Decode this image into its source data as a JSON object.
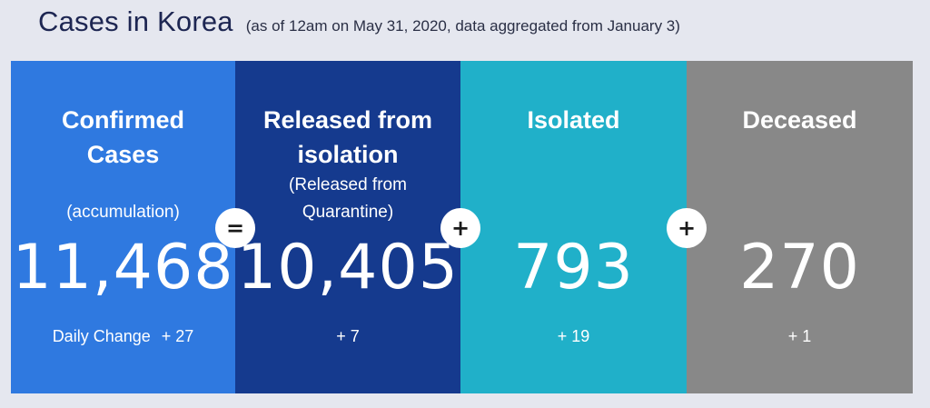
{
  "header": {
    "title": "Cases in Korea",
    "subtitle": "(as of 12am on May 31, 2020, data aggregated from January 3)"
  },
  "panels": [
    {
      "label_line1": "Confirmed",
      "label_line2": "Cases",
      "sub_line1": "(accumulation)",
      "value": "11,468",
      "change_label": "Daily Change",
      "change": "+ 27",
      "color": "#2f79e0"
    },
    {
      "label_line1": "Released from",
      "label_line2": "isolation",
      "sub_line1": "(Released from",
      "sub_line2": "Quarantine)",
      "value": "10,405",
      "change": "+ 7",
      "color": "#153a8e"
    },
    {
      "label_line1": "Isolated",
      "value": "793",
      "change": "+ 19",
      "color": "#20b0c9"
    },
    {
      "label_line1": "Deceased",
      "value": "270",
      "change": "+ 1",
      "color": "#888888"
    }
  ],
  "operators": [
    "=",
    "+",
    "+"
  ]
}
